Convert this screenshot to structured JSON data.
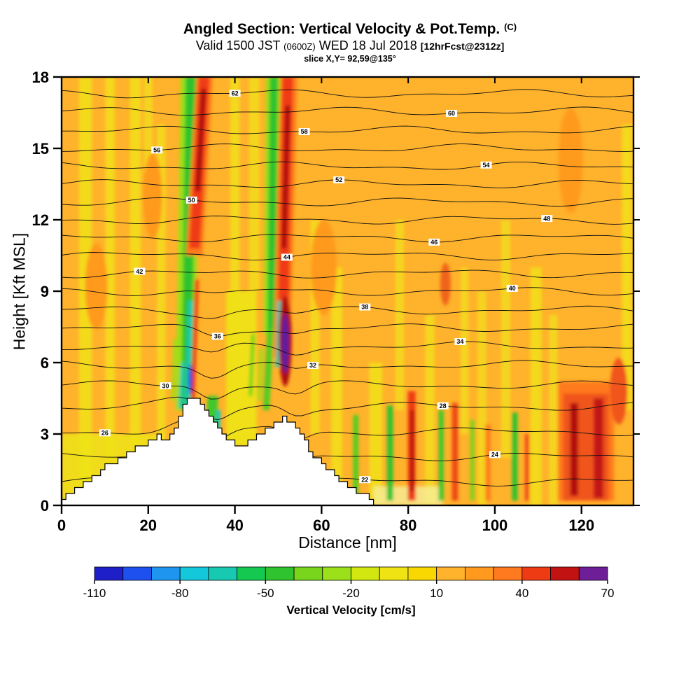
{
  "title": {
    "main": "Angled Section: Vertical Velocity & Pot.Temp.",
    "main_unit": "(C)",
    "valid_prefix": "Valid 1500 JST",
    "valid_z": "(0600Z)",
    "valid_date": "WED 18 Jul 2018",
    "fcst": "[12hrFcst@2312z]",
    "slice": "slice X,Y= 92,59@135°"
  },
  "axes": {
    "x": {
      "label": "Distance [nm]",
      "ticks": [
        0,
        20,
        40,
        60,
        80,
        100,
        120
      ]
    },
    "y": {
      "label": "Height [Kft MSL]",
      "ticks": [
        0,
        3,
        6,
        9,
        12,
        15,
        18
      ]
    }
  },
  "colorbar": {
    "label": "Vertical Velocity [cm/s]",
    "ticks": [
      -110,
      -80,
      -50,
      -20,
      10,
      40,
      70
    ]
  },
  "chart_data": {
    "type": "heatmap",
    "subtype": "filled-contour vertical cross-section with isentrope line contours and terrain mask",
    "title": "Angled Section: Vertical Velocity & Pot.Temp. (C)",
    "xlabel": "Distance [nm]",
    "ylabel": "Height [Kft MSL]",
    "xlim": [
      0,
      132
    ],
    "ylim": [
      0,
      18
    ],
    "x_ticks": [
      0,
      20,
      40,
      60,
      80,
      100,
      120
    ],
    "y_ticks": [
      0,
      3,
      6,
      9,
      12,
      15,
      18
    ],
    "fill_field": "Vertical Velocity [cm/s]",
    "fill_levels": [
      -110,
      -100,
      -90,
      -80,
      -70,
      -60,
      -50,
      -40,
      -30,
      -20,
      -10,
      0,
      10,
      20,
      30,
      40,
      50,
      60,
      70
    ],
    "fill_colors": [
      "#1f1fca",
      "#1e50f0",
      "#1e96f0",
      "#14c8dc",
      "#17c9b0",
      "#14c850",
      "#2fc32f",
      "#79d41c",
      "#9be019",
      "#d2e60f",
      "#efe314",
      "#f8d800",
      "#ffb22b",
      "#ff9a1e",
      "#ff7a1e",
      "#ef3b14",
      "#c31212",
      "#6e1e96"
    ],
    "base_color": "#ffb22b",
    "terrain": {
      "color": "#ffffff",
      "profile": [
        [
          0,
          0.25
        ],
        [
          1,
          0.4
        ],
        [
          2,
          0.55
        ],
        [
          3,
          0.7
        ],
        [
          4,
          0.85
        ],
        [
          5,
          0.95
        ],
        [
          6,
          1.05
        ],
        [
          7,
          1.2
        ],
        [
          8,
          1.3
        ],
        [
          9,
          1.45
        ],
        [
          10,
          1.65
        ],
        [
          11,
          1.8
        ],
        [
          12,
          1.75
        ],
        [
          13,
          1.9
        ],
        [
          14,
          2.05
        ],
        [
          15,
          2.15
        ],
        [
          16,
          2.25
        ],
        [
          17,
          2.4
        ],
        [
          18,
          2.5
        ],
        [
          19,
          2.6
        ],
        [
          20,
          2.7
        ],
        [
          21,
          2.8
        ],
        [
          22,
          2.9
        ],
        [
          23,
          2.75
        ],
        [
          24,
          2.85
        ],
        [
          25,
          3.05
        ],
        [
          26,
          3.35
        ],
        [
          27,
          3.75
        ],
        [
          28,
          4.15
        ],
        [
          29,
          4.45
        ],
        [
          30,
          4.6
        ],
        [
          31,
          4.55
        ],
        [
          32,
          4.35
        ],
        [
          33,
          4.1
        ],
        [
          34,
          3.8
        ],
        [
          35,
          3.5
        ],
        [
          36,
          3.25
        ],
        [
          37,
          3.05
        ],
        [
          38,
          2.85
        ],
        [
          39,
          2.7
        ],
        [
          40,
          2.6
        ],
        [
          41,
          2.55
        ],
        [
          42,
          2.62
        ],
        [
          43,
          2.7
        ],
        [
          44,
          2.78
        ],
        [
          45,
          2.88
        ],
        [
          46,
          3.0
        ],
        [
          47,
          3.15
        ],
        [
          48,
          3.3
        ],
        [
          49,
          3.5
        ],
        [
          50,
          3.62
        ],
        [
          51,
          3.7
        ],
        [
          52,
          3.6
        ],
        [
          53,
          3.45
        ],
        [
          54,
          3.22
        ],
        [
          55,
          2.95
        ],
        [
          56,
          2.65
        ],
        [
          57,
          2.35
        ],
        [
          58,
          2.1
        ],
        [
          59,
          1.9
        ],
        [
          60,
          1.75
        ],
        [
          61,
          1.6
        ],
        [
          62,
          1.45
        ],
        [
          63,
          1.25
        ],
        [
          64,
          1.1
        ],
        [
          65,
          0.95
        ],
        [
          66,
          0.82
        ],
        [
          67,
          0.7
        ],
        [
          68,
          0.58
        ],
        [
          69,
          0.48
        ],
        [
          70,
          0.38
        ],
        [
          71,
          0.25
        ],
        [
          72,
          0.1
        ],
        [
          73,
          0
        ]
      ]
    },
    "contours": {
      "field": "potential temperature (C)",
      "levels": [
        {
          "v": 22,
          "z": 1.0,
          "lx": 70
        },
        {
          "v": 24,
          "z": 2.05,
          "lx": 100
        },
        {
          "v": 26,
          "z": 3.1,
          "lx": 10
        },
        {
          "v": 28,
          "z": 4.15,
          "lx": 88
        },
        {
          "v": 30,
          "z": 5.05,
          "lx": 24
        },
        {
          "v": 32,
          "z": 5.9,
          "lx": 58
        },
        {
          "v": 34,
          "z": 6.7,
          "lx": 92
        },
        {
          "v": 36,
          "z": 7.45,
          "lx": 36
        },
        {
          "v": 38,
          "z": 8.2,
          "lx": 70
        },
        {
          "v": 40,
          "z": 9.0,
          "lx": 104
        },
        {
          "v": 42,
          "z": 9.75,
          "lx": 18
        },
        {
          "v": 44,
          "z": 10.5,
          "lx": 52
        },
        {
          "v": 46,
          "z": 11.25,
          "lx": 86
        },
        {
          "v": 48,
          "z": 12.0,
          "lx": 112
        },
        {
          "v": 50,
          "z": 12.75,
          "lx": 30
        },
        {
          "v": 52,
          "z": 13.5,
          "lx": 64
        },
        {
          "v": 54,
          "z": 14.25,
          "lx": 98
        },
        {
          "v": 56,
          "z": 15.0,
          "lx": 22
        },
        {
          "v": 58,
          "z": 15.75,
          "lx": 56
        },
        {
          "v": 60,
          "z": 16.55,
          "lx": 90
        },
        {
          "v": 62,
          "z": 17.3,
          "lx": 40
        }
      ]
    },
    "bands": [
      {
        "x0": 28.5,
        "z0": 4.0,
        "x1": 29.7,
        "z1": 18,
        "w": 4.4,
        "color": "#9be019"
      },
      {
        "x0": 28.8,
        "z0": 4.0,
        "x1": 29.8,
        "z1": 18,
        "w": 2.4,
        "color": "#2fc32f"
      },
      {
        "x0": 29.0,
        "z0": 4.2,
        "x1": 29.8,
        "z1": 8.6,
        "w": 1.1,
        "color": "#17c9b0"
      },
      {
        "x0": 30.6,
        "z0": 10.5,
        "x1": 33.0,
        "z1": 18,
        "w": 3.8,
        "color": "#ff7a1e"
      },
      {
        "x0": 30.7,
        "z0": 10.8,
        "x1": 32.9,
        "z1": 18,
        "w": 2.4,
        "color": "#ef3b14"
      },
      {
        "x0": 31.4,
        "z0": 13.2,
        "x1": 32.8,
        "z1": 17.5,
        "w": 1.2,
        "color": "#b01010"
      },
      {
        "x0": 30.3,
        "z0": 4.4,
        "x1": 31.2,
        "z1": 9.5,
        "w": 0.9,
        "color": "#ef3b14"
      },
      {
        "x0": 25.6,
        "z0": 4.4,
        "x1": 26.2,
        "z1": 7.0,
        "w": 0.7,
        "color": "#9be019"
      },
      {
        "x0": 27.4,
        "z0": 4.1,
        "x1": 28.0,
        "z1": 6.0,
        "w": 0.8,
        "color": "#17c9b0"
      },
      {
        "x0": 34.5,
        "z0": 2.6,
        "x1": 34.9,
        "z1": 4.6,
        "w": 2.4,
        "color": "#3fc82a"
      },
      {
        "x0": 36.0,
        "z0": 2.7,
        "x1": 36.2,
        "z1": 4.0,
        "w": 1.0,
        "color": "#17c9b0"
      },
      {
        "x0": 48.2,
        "z0": 7.2,
        "x1": 48.8,
        "z1": 18,
        "w": 3.2,
        "color": "#9be019"
      },
      {
        "x0": 48.4,
        "z0": 7.4,
        "x1": 49.0,
        "z1": 18,
        "w": 1.9,
        "color": "#2fc32f"
      },
      {
        "x0": 50.8,
        "z0": 6.2,
        "x1": 52.4,
        "z1": 18,
        "w": 3.9,
        "color": "#ff7a1e"
      },
      {
        "x0": 51.0,
        "z0": 6.4,
        "x1": 52.2,
        "z1": 18,
        "w": 2.4,
        "color": "#ef3b14"
      },
      {
        "x0": 51.3,
        "z0": 10.8,
        "x1": 52.2,
        "z1": 16.8,
        "w": 1.2,
        "color": "#b01010"
      },
      {
        "x0": 49.8,
        "z0": 5.8,
        "x1": 50.2,
        "z1": 8.6,
        "w": 0.8,
        "color": "#17c9b0"
      },
      {
        "x0": 47.2,
        "z0": 4.0,
        "x1": 48.2,
        "z1": 7.4,
        "w": 1.5,
        "color": "#55cc22"
      },
      {
        "x0": 43.6,
        "z0": 4.6,
        "x1": 44.2,
        "z1": 7.2,
        "w": 0.9,
        "color": "#79d41c"
      },
      {
        "x0": 45.6,
        "z0": 4.4,
        "x1": 46.1,
        "z1": 6.6,
        "w": 0.8,
        "color": "#9be019"
      }
    ],
    "streaks": [
      {
        "x": 67.9,
        "z0": 0.2,
        "z1": 3.8,
        "w": 1.2,
        "color": "#55cc22"
      },
      {
        "x": 75.8,
        "z0": 0.2,
        "z1": 4.2,
        "w": 1.4,
        "color": "#2fc32f"
      },
      {
        "x": 80.8,
        "z0": 0.2,
        "z1": 4.8,
        "w": 1.8,
        "color": "#ef3b14"
      },
      {
        "x": 80.9,
        "z0": 0.6,
        "z1": 4.0,
        "w": 0.8,
        "color": "#b01010"
      },
      {
        "x": 87.6,
        "z0": 0.2,
        "z1": 4.0,
        "w": 1.2,
        "color": "#3fc82a"
      },
      {
        "x": 90.8,
        "z0": 0.2,
        "z1": 4.3,
        "w": 1.4,
        "color": "#ef4614"
      },
      {
        "x": 94.8,
        "z0": 0.2,
        "z1": 3.6,
        "w": 1.0,
        "color": "#79d41c"
      },
      {
        "x": 98.4,
        "z0": 0.2,
        "z1": 3.4,
        "w": 1.2,
        "color": "#ff7a1e"
      },
      {
        "x": 104.6,
        "z0": 0.2,
        "z1": 3.9,
        "w": 1.3,
        "color": "#2fc32f"
      },
      {
        "x": 107.4,
        "z0": 0.2,
        "z1": 3.0,
        "w": 0.9,
        "color": "#ef4614"
      },
      {
        "x": 121.0,
        "z0": 0.2,
        "z1": 5.2,
        "w": 13.0,
        "color": "#ff7a1e"
      },
      {
        "x": 121.0,
        "z0": 0.2,
        "z1": 4.7,
        "w": 10.5,
        "color": "#f0551e"
      },
      {
        "x": 118.3,
        "z0": 0.4,
        "z1": 4.3,
        "w": 1.8,
        "color": "#b01010"
      },
      {
        "x": 123.9,
        "z0": 0.3,
        "z1": 4.5,
        "w": 2.2,
        "color": "#c31212"
      }
    ],
    "blobs": [
      {
        "x": 51.6,
        "z": 6.9,
        "rx": 1.5,
        "ry": 1.9,
        "color": "#b01010"
      },
      {
        "x": 51.6,
        "z": 6.8,
        "rx": 0.85,
        "ry": 1.25,
        "color": "#5f1a9e"
      },
      {
        "x": 29.7,
        "z": 5.3,
        "rx": 0.45,
        "ry": 0.65,
        "color": "#2244dd"
      },
      {
        "x": 88.6,
        "z": 9.3,
        "rx": 1.2,
        "ry": 0.9,
        "color": "#f0641e"
      },
      {
        "x": 128.6,
        "z": 4.8,
        "rx": 2.0,
        "ry": 1.4,
        "color": "#f0551e"
      },
      {
        "x": 117.5,
        "z": 14.5,
        "rx": 2.8,
        "ry": 2.2,
        "color": "#ff9a1e"
      },
      {
        "x": 8.0,
        "z": 9.2,
        "rx": 2.6,
        "ry": 1.8,
        "color": "#ff9a1e"
      },
      {
        "x": 60.5,
        "z": 10.0,
        "rx": 3.0,
        "ry": 2.0,
        "color": "#ff9a1e"
      },
      {
        "x": 21.0,
        "z": 13.0,
        "rx": 2.2,
        "ry": 1.8,
        "color": "#ff9a1e"
      }
    ],
    "stripes": [
      {
        "x": 5.5,
        "w": 3.0,
        "z0": 0.5,
        "z1": 18,
        "color": "#f1e21a",
        "op": 0.85
      },
      {
        "x": 11.2,
        "w": 2.2,
        "z0": 2,
        "z1": 18,
        "color": "#f1e21a",
        "op": 0.8
      },
      {
        "x": 17.0,
        "w": 2.6,
        "z0": 2.5,
        "z1": 18,
        "color": "#f1e21a",
        "op": 0.8
      },
      {
        "x": 23.0,
        "w": 2.0,
        "z0": 3,
        "z1": 16,
        "color": "#f1e21a",
        "op": 0.75
      },
      {
        "x": 12.0,
        "w": 24.0,
        "z0": 0,
        "z1": 3.0,
        "color": "#efe314",
        "op": 0.85
      },
      {
        "x": 41.5,
        "w": 7.0,
        "z0": 2.5,
        "z1": 9,
        "color": "#efe314",
        "op": 0.95
      },
      {
        "x": 40.0,
        "w": 2.2,
        "z0": 9,
        "z1": 18,
        "color": "#f1e21a",
        "op": 0.8
      },
      {
        "x": 44.5,
        "w": 2.4,
        "z0": 9,
        "z1": 18,
        "color": "#f1e21a",
        "op": 0.75
      },
      {
        "x": 58.5,
        "w": 2.2,
        "z0": 3,
        "z1": 12,
        "color": "#f1e21a",
        "op": 0.75
      },
      {
        "x": 63.5,
        "w": 2.6,
        "z0": 0.5,
        "z1": 10,
        "color": "#f1e21a",
        "op": 0.8
      },
      {
        "x": 72.5,
        "w": 3.0,
        "z0": 0,
        "z1": 6,
        "color": "#f1e21a",
        "op": 0.85
      },
      {
        "x": 78.0,
        "w": 2.0,
        "z0": 4,
        "z1": 12,
        "color": "#f1e21a",
        "op": 0.7
      },
      {
        "x": 85.0,
        "w": 2.2,
        "z0": 0,
        "z1": 8,
        "color": "#f1e21a",
        "op": 0.75
      },
      {
        "x": 93.0,
        "w": 1.8,
        "z0": 3,
        "z1": 10,
        "color": "#f1e21a",
        "op": 0.7
      },
      {
        "x": 97.0,
        "w": 2.0,
        "z0": 0,
        "z1": 9,
        "color": "#f1e21a",
        "op": 0.7
      },
      {
        "x": 102.5,
        "w": 2.2,
        "z0": 2,
        "z1": 12,
        "color": "#f1e21a",
        "op": 0.7
      },
      {
        "x": 109.5,
        "w": 2.6,
        "z0": 0,
        "z1": 10,
        "color": "#f1e21a",
        "op": 0.8
      },
      {
        "x": 113.5,
        "w": 2.0,
        "z0": 0,
        "z1": 8,
        "color": "#f1e21a",
        "op": 0.7
      },
      {
        "x": 130.5,
        "w": 2.4,
        "z0": 4,
        "z1": 16,
        "color": "#f1e21a",
        "op": 0.8
      },
      {
        "x": 20.0,
        "w": 2.0,
        "z0": 12,
        "z1": 18,
        "color": "#f1e21a",
        "op": 0.7
      },
      {
        "x": 80.0,
        "w": 16.0,
        "z0": 0,
        "z1": 0.8,
        "color": "#f6ef9a",
        "op": 0.8
      }
    ]
  }
}
